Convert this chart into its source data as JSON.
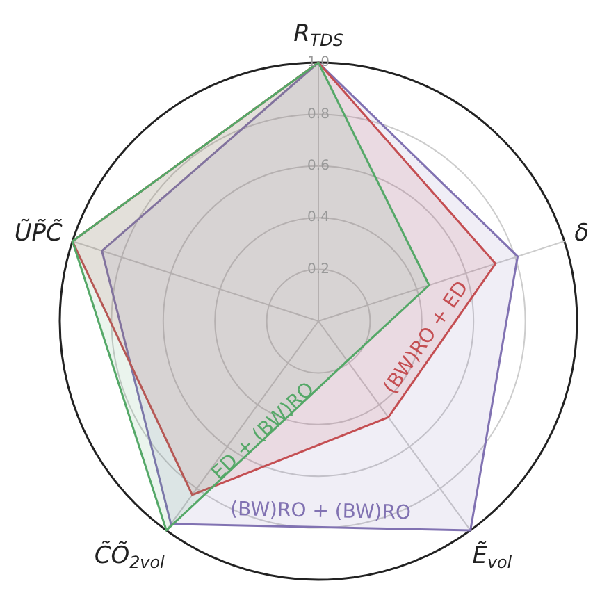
{
  "chart_data": {
    "type": "radar",
    "categories": [
      "R$_{TDS}$",
      "δ",
      "Ẽ$_{vol}$",
      "C̃Õ$_{2vol}$",
      "ŨP̃C̃"
    ],
    "series": [
      {
        "name": "ED + (BW)RO",
        "color": "#55a868",
        "values": [
          1.0,
          0.45,
          0.19,
          1.0,
          1.0
        ]
      },
      {
        "name": "(BW)RO + ED",
        "color": "#c44e52",
        "values": [
          1.0,
          0.72,
          0.46,
          0.83,
          1.0
        ]
      },
      {
        "name": "(BW)RO + (BW)RO",
        "color": "#8172b2",
        "values": [
          1.0,
          0.81,
          1.0,
          0.97,
          0.88
        ]
      }
    ],
    "ylim": [
      0,
      1
    ],
    "yticks": [
      0.2,
      0.4,
      0.6,
      0.8,
      {
        "value": 1,
        "label": "1.0"
      }
    ],
    "grid": true,
    "legend": false,
    "marker": "none"
  }
}
